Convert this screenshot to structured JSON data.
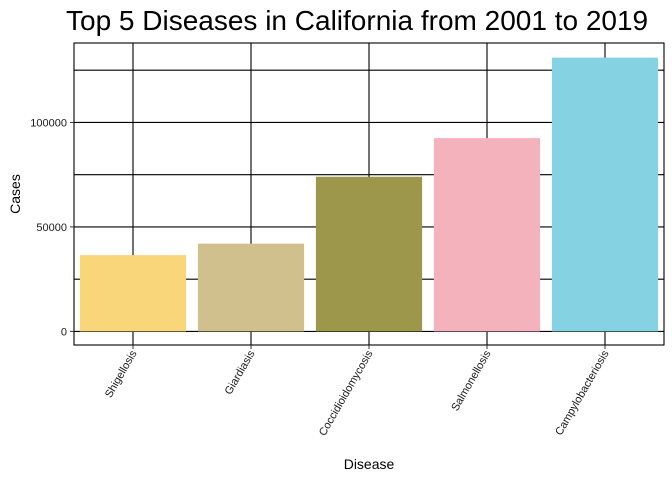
{
  "chart_data": {
    "type": "bar",
    "title": "Top 5 Diseases in California from 2001 to 2019",
    "xlabel": "Disease",
    "ylabel": "Cases",
    "categories": [
      "Shigellosis",
      "Giardiasis",
      "Coccidioidomycosis",
      "Salmonellosis",
      "Campylobacteriosis"
    ],
    "values": [
      36500,
      42000,
      74000,
      92500,
      131000
    ],
    "colors": [
      "#f9d67a",
      "#cfc08d",
      "#9c974b",
      "#f4b3bc",
      "#84d2e2"
    ],
    "ylim": [
      -6500,
      138000
    ],
    "yticks": [
      0,
      50000,
      100000
    ],
    "ytick_labels": [
      "0",
      "50000",
      "100000"
    ],
    "grid": true,
    "legend": "none"
  }
}
